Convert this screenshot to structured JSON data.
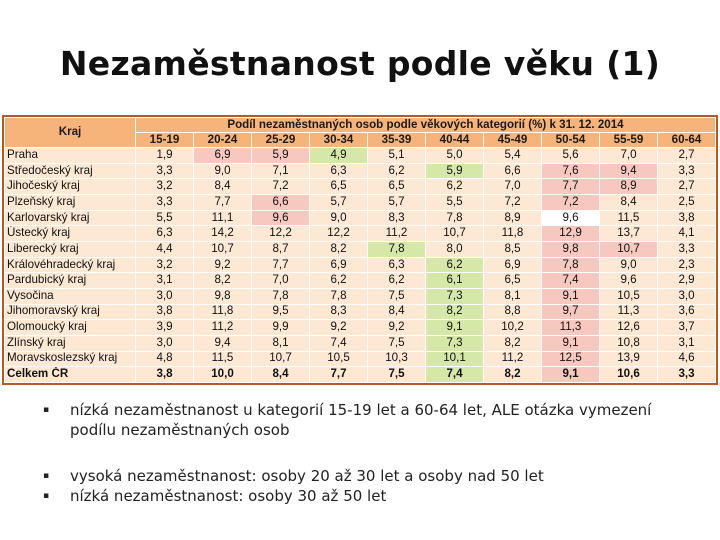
{
  "title": "Nezaměstnanost podle věku (1)",
  "table": {
    "region_header": "Kraj",
    "main_header": "Podíl nezaměstnaných osob podle věkových kategorií (%) k 31. 12. 2014",
    "columns": [
      "15-19",
      "20-24",
      "25-29",
      "30-34",
      "35-39",
      "40-44",
      "45-49",
      "50-54",
      "55-59",
      "60-64"
    ],
    "rows": [
      {
        "region": "Praha",
        "values": [
          "1,9",
          "6,9",
          "5,9",
          "4,9",
          "5,1",
          "5,0",
          "5,4",
          "5,6",
          "7,0",
          "2,7"
        ],
        "colors": [
          "n",
          "r",
          "r",
          "g",
          "n",
          "n",
          "n",
          "n",
          "n",
          "n"
        ]
      },
      {
        "region": "Středočeský kraj",
        "values": [
          "3,3",
          "9,0",
          "7,1",
          "6,3",
          "6,2",
          "5,9",
          "6,6",
          "7,6",
          "9,4",
          "3,3"
        ],
        "colors": [
          "n",
          "n",
          "n",
          "n",
          "n",
          "g",
          "n",
          "r",
          "r",
          "n"
        ]
      },
      {
        "region": "Jihočeský kraj",
        "values": [
          "3,2",
          "8,4",
          "7,2",
          "6,5",
          "6,5",
          "6,2",
          "7,0",
          "7,7",
          "8,9",
          "2,7"
        ],
        "colors": [
          "n",
          "n",
          "n",
          "n",
          "n",
          "n",
          "n",
          "r",
          "r",
          "n"
        ]
      },
      {
        "region": "Plzeňský kraj",
        "values": [
          "3,3",
          "7,7",
          "6,6",
          "5,7",
          "5,7",
          "5,5",
          "7,2",
          "7,2",
          "8,4",
          "2,5"
        ],
        "colors": [
          "n",
          "n",
          "r",
          "n",
          "n",
          "n",
          "n",
          "r",
          "n",
          "n"
        ]
      },
      {
        "region": "Karlovarský kraj",
        "values": [
          "5,5",
          "11,1",
          "9,6",
          "9,0",
          "8,3",
          "7,8",
          "8,9",
          "9,6",
          "11,5",
          "3,8"
        ],
        "colors": [
          "n",
          "n",
          "r",
          "n",
          "n",
          "n",
          "n",
          "w",
          "n",
          "n"
        ]
      },
      {
        "region": "Ústecký kraj",
        "values": [
          "6,3",
          "14,2",
          "12,2",
          "12,2",
          "11,2",
          "10,7",
          "11,8",
          "12,9",
          "13,7",
          "4,1"
        ],
        "colors": [
          "n",
          "n",
          "n",
          "n",
          "n",
          "n",
          "n",
          "r",
          "n",
          "n"
        ]
      },
      {
        "region": "Liberecký kraj",
        "values": [
          "4,4",
          "10,7",
          "8,7",
          "8,2",
          "7,8",
          "8,0",
          "8,5",
          "9,8",
          "10,7",
          "3,3"
        ],
        "colors": [
          "n",
          "n",
          "n",
          "n",
          "g",
          "n",
          "n",
          "r",
          "r",
          "n"
        ]
      },
      {
        "region": "Královéhradecký kraj",
        "values": [
          "3,2",
          "9,2",
          "7,7",
          "6,9",
          "6,3",
          "6,2",
          "6,9",
          "7,8",
          "9,0",
          "2,3"
        ],
        "colors": [
          "n",
          "n",
          "n",
          "n",
          "n",
          "g",
          "n",
          "r",
          "n",
          "n"
        ]
      },
      {
        "region": "Pardubický kraj",
        "values": [
          "3,1",
          "8,2",
          "7,0",
          "6,2",
          "6,2",
          "6,1",
          "6,5",
          "7,4",
          "9,6",
          "2,9"
        ],
        "colors": [
          "n",
          "n",
          "n",
          "n",
          "n",
          "g",
          "n",
          "r",
          "n",
          "n"
        ]
      },
      {
        "region": "Vysočina",
        "values": [
          "3,0",
          "9,8",
          "7,8",
          "7,8",
          "7,5",
          "7,3",
          "8,1",
          "9,1",
          "10,5",
          "3,0"
        ],
        "colors": [
          "n",
          "n",
          "n",
          "n",
          "n",
          "g",
          "n",
          "r",
          "n",
          "n"
        ]
      },
      {
        "region": "Jihomoravský kraj",
        "values": [
          "3,8",
          "11,8",
          "9,5",
          "8,3",
          "8,4",
          "8,2",
          "8,8",
          "9,7",
          "11,3",
          "3,6"
        ],
        "colors": [
          "n",
          "n",
          "n",
          "n",
          "n",
          "g",
          "n",
          "r",
          "n",
          "n"
        ]
      },
      {
        "region": "Olomoucký kraj",
        "values": [
          "3,9",
          "11,2",
          "9,9",
          "9,2",
          "9,2",
          "9,1",
          "10,2",
          "11,3",
          "12,6",
          "3,7"
        ],
        "colors": [
          "n",
          "n",
          "n",
          "n",
          "n",
          "g",
          "n",
          "r",
          "n",
          "n"
        ]
      },
      {
        "region": "Zlínský kraj",
        "values": [
          "3,0",
          "9,4",
          "8,1",
          "7,4",
          "7,5",
          "7,3",
          "8,2",
          "9,1",
          "10,8",
          "3,1"
        ],
        "colors": [
          "n",
          "n",
          "n",
          "n",
          "n",
          "g",
          "n",
          "r",
          "n",
          "n"
        ]
      },
      {
        "region": "Moravskoslezský kraj",
        "values": [
          "4,8",
          "11,5",
          "10,7",
          "10,5",
          "10,3",
          "10,1",
          "11,2",
          "12,5",
          "13,9",
          "4,6"
        ],
        "colors": [
          "n",
          "n",
          "n",
          "n",
          "n",
          "g",
          "n",
          "r",
          "n",
          "n"
        ]
      }
    ],
    "total": {
      "region": "Celkem ČR",
      "values": [
        "3,8",
        "10,0",
        "8,4",
        "7,7",
        "7,5",
        "7,4",
        "8,2",
        "9,1",
        "10,6",
        "3,3"
      ],
      "colors": [
        "n",
        "n",
        "n",
        "n",
        "n",
        "g",
        "n",
        "r",
        "n",
        "n"
      ]
    }
  },
  "bullets": [
    {
      "mark": "▪",
      "text": "nízká nezaměstnanost u kategorií 15-19 let a 60-64 let, ALE otázka vymezení podílu nezaměstnaných osob"
    },
    {
      "mark": "▪",
      "text": "vysoká nezaměstnanost: osoby 20 až 30 let a osoby nad 50 let"
    },
    {
      "mark": "▪",
      "text": "nízká nezaměstnanost: osoby 30 až 50 let"
    }
  ],
  "colors": {
    "header": "#f7b47a",
    "neutral": "#fde8d4",
    "red": "#f7c8c0",
    "green": "#d6e8a8",
    "border": "#b45a2a"
  }
}
